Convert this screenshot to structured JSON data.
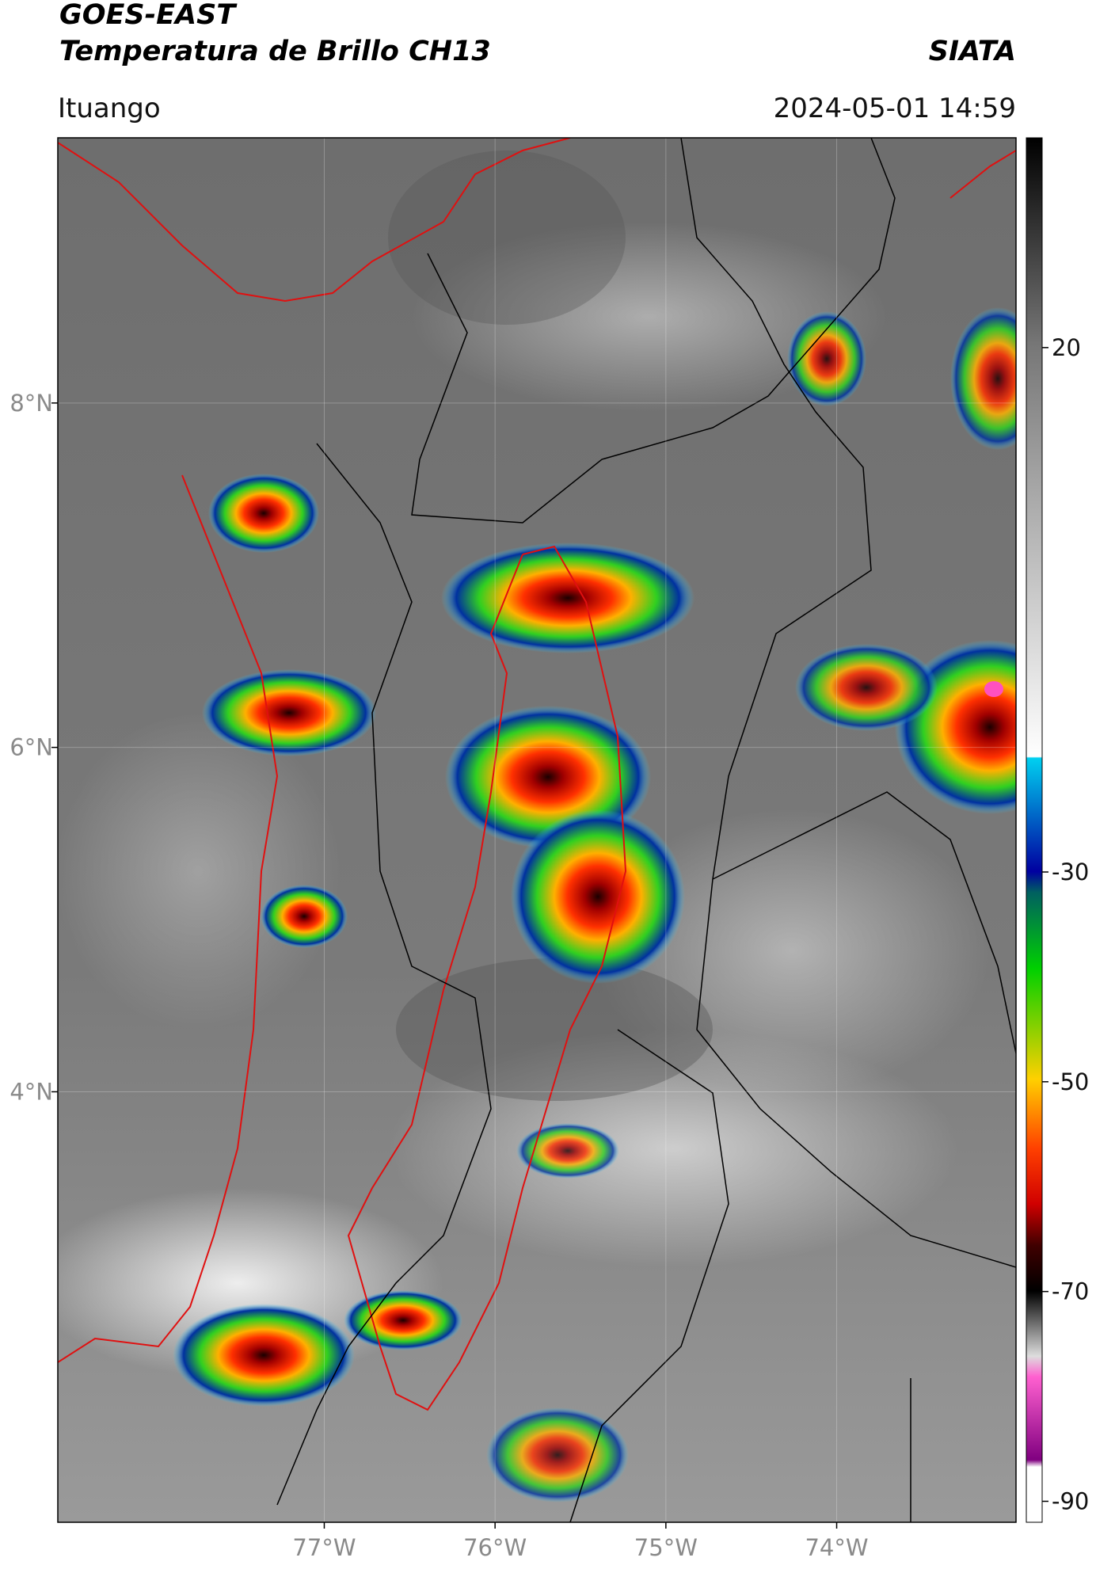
{
  "header": {
    "title": "GOES-EAST",
    "subtitle": "Temperatura de Brillo CH13",
    "brand": "SIATA",
    "location": "Ituango",
    "datetime": "2024-05-01 14:59"
  },
  "map": {
    "xlim": [
      -78.56,
      -72.95
    ],
    "ylim": [
      1.5,
      9.54
    ],
    "xticks": [
      {
        "value": -77,
        "label": "77°W"
      },
      {
        "value": -76,
        "label": "76°W"
      },
      {
        "value": -75,
        "label": "75°W"
      },
      {
        "value": -74,
        "label": "74°W"
      }
    ],
    "yticks": [
      {
        "value": 8,
        "label": "8°N"
      },
      {
        "value": 6,
        "label": "6°N"
      },
      {
        "value": 4,
        "label": "4°N"
      }
    ],
    "grid": true
  },
  "colorbar": {
    "lim": [
      -92,
      40
    ],
    "ticks": [
      20,
      -30,
      -50,
      -70,
      -90
    ]
  }
}
